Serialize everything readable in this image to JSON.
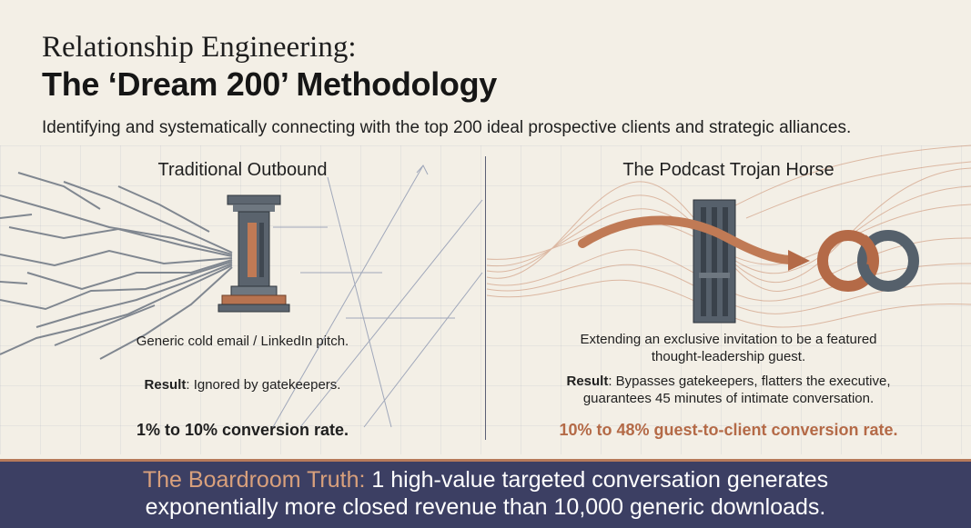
{
  "header": {
    "title_line1": "Relationship Engineering:",
    "title_line2": "The ‘Dream 200’ Methodology",
    "subtitle": "Identifying and systematically connecting with the top 200 ideal prospective clients and strategic alliances."
  },
  "left_panel": {
    "heading": "Traditional Outbound",
    "illustration_icon": "pillar-icon",
    "description": "Generic cold email / LinkedIn pitch.",
    "result_label": "Result",
    "result_text": ": Ignored by gatekeepers.",
    "conversion_rate": "1% to 10% conversion rate."
  },
  "right_panel": {
    "heading": "The Podcast Trojan Horse",
    "illustration_icon": "linked-rings-icon",
    "description_line1": "Extending an exclusive invitation to be a featured",
    "description_line2": "thought-leadership guest.",
    "result_label": "Result",
    "result_line1": ": Bypasses gatekeepers, flatters the executive,",
    "result_line2": "guarantees 45 minutes of intimate conversation.",
    "conversion_rate": "10% to 48% guest-to-client conversion rate."
  },
  "footer": {
    "highlight": "The Boardroom Truth:",
    "line1": " 1 high-value targeted conversation generates",
    "line2": "exponentially more closed revenue than 10,000 generic downloads."
  },
  "colors": {
    "background": "#f3efe6",
    "accent_copper": "#b46a47",
    "navy": "#3c3f63",
    "slate": "#4f5a66"
  }
}
